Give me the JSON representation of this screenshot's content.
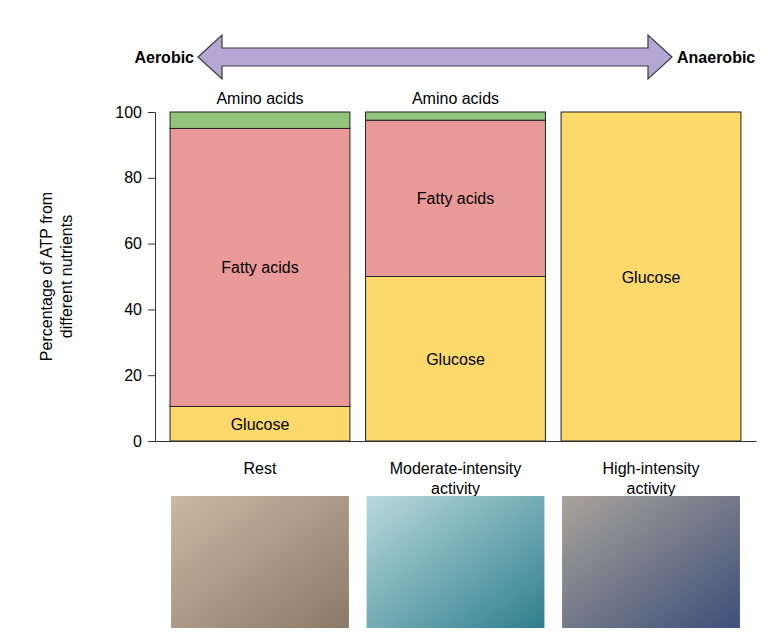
{
  "chart_data": {
    "type": "bar",
    "stacked": true,
    "y_label": "Percentage of ATP from different nutrients",
    "annotations": [
      "Aerobic",
      "Anaerobic"
    ],
    "categories": [
      "Rest",
      "Moderate-intensity activity",
      "High-intensity activity"
    ],
    "series": [
      {
        "name": "Glucose",
        "color": "#fdd96b",
        "values": [
          10.5,
          50,
          100
        ]
      },
      {
        "name": "Fatty acids",
        "color": "#ea9999",
        "values": [
          84.5,
          47.5,
          0
        ]
      },
      {
        "name": "Amino acids",
        "color": "#93c47d",
        "values": [
          5,
          2.5,
          0
        ]
      }
    ],
    "ylim": [
      0,
      100
    ],
    "yticks": [
      0,
      20,
      40,
      60,
      80,
      100
    ],
    "grid": false
  }
}
